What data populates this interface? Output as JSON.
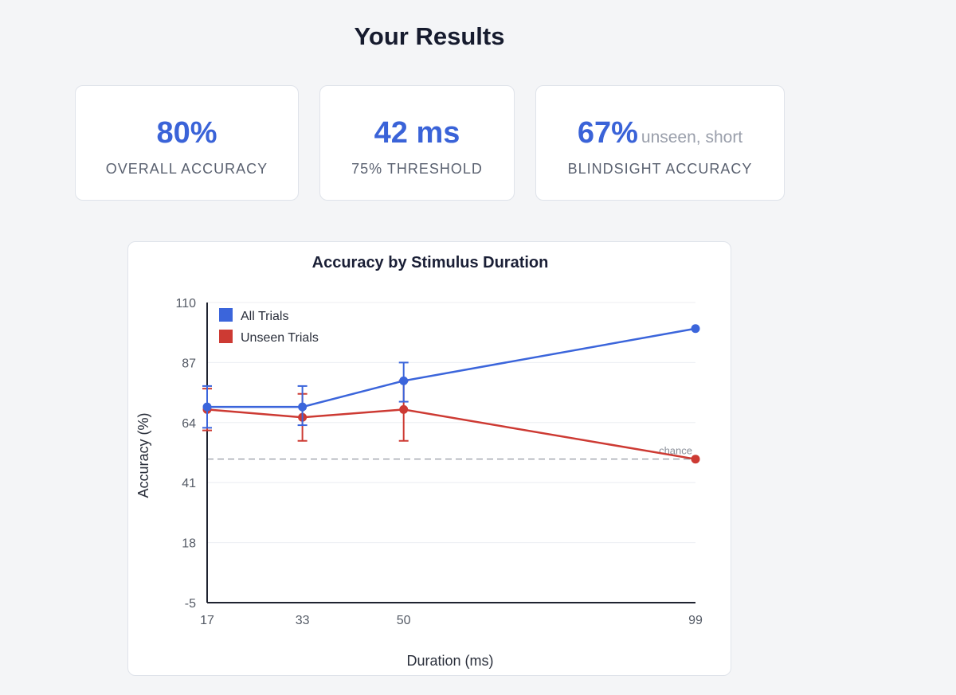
{
  "page": {
    "title": "Your Results"
  },
  "cards": [
    {
      "value": "80%",
      "sub": "",
      "label": "OVERALL ACCURACY"
    },
    {
      "value": "42 ms",
      "sub": "",
      "label": "75% THRESHOLD"
    },
    {
      "value": "67%",
      "sub": "unseen, short",
      "label": "BLINDSIGHT ACCURACY"
    }
  ],
  "colors": {
    "accent": "#3a63d8",
    "all_trials": "#3b65db",
    "unseen_trials": "#cd3a33",
    "chance_line": "#8a8f99"
  },
  "chart_data": {
    "type": "line",
    "title": "Accuracy by Stimulus Duration",
    "xlabel": "Duration (ms)",
    "ylabel": "Accuracy (%)",
    "x": [
      17,
      33,
      50,
      99
    ],
    "xlim": [
      17,
      99
    ],
    "ylim": [
      -5,
      110
    ],
    "yticks": [
      -5,
      18,
      41,
      64,
      87,
      110
    ],
    "grid": true,
    "legend_position": "top-left",
    "chance": {
      "value": 50,
      "label": "chance"
    },
    "series": [
      {
        "name": "All Trials",
        "color": "#3b65db",
        "values": [
          70,
          70,
          80,
          100
        ],
        "errors": [
          [
            62,
            78
          ],
          [
            63,
            78
          ],
          [
            72,
            87
          ],
          null
        ]
      },
      {
        "name": "Unseen Trials",
        "color": "#cd3a33",
        "values": [
          69,
          66,
          69,
          50
        ],
        "errors": [
          [
            61,
            77
          ],
          [
            57,
            75
          ],
          [
            57,
            80
          ],
          null
        ]
      }
    ]
  }
}
